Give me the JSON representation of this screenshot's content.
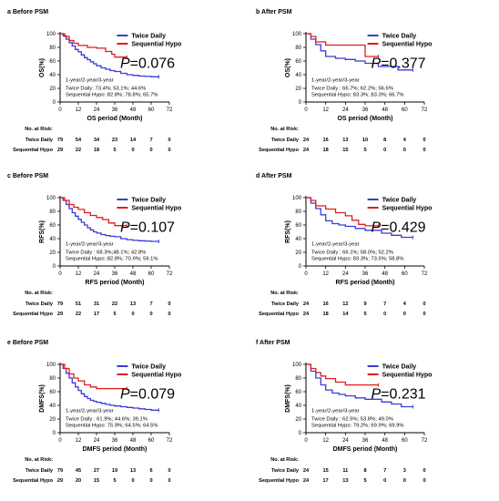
{
  "colors": {
    "twice": "#3b3bd6",
    "sequential": "#e11c1c",
    "axis": "#000000"
  },
  "risk_header": "No. at Risk:",
  "chart_data": [
    {
      "type": "line",
      "panel": "a",
      "title": "Before PSM",
      "ylabel": "OS(%)",
      "xlabel": "OS period (Month)",
      "xlim": [
        0,
        72
      ],
      "ylim": [
        0,
        100
      ],
      "xticks": [
        0,
        12,
        24,
        36,
        48,
        60,
        72
      ],
      "yticks": [
        0,
        20,
        40,
        60,
        80,
        100
      ],
      "grid": false,
      "legend_position": "top-right",
      "p_value": "=0.076",
      "summary_header": "1-year/2-year/3-year",
      "summary_lines": [
        "Twice Daily: 73.4%; 53.1%; 44.6%",
        "Sequential Hypo: 82.8%; 78.8%; 65.7%"
      ],
      "risk_times": [
        0,
        12,
        24,
        36,
        48,
        60,
        72
      ],
      "series": [
        {
          "name": "Twice Daily",
          "color": "#3b3bd6",
          "x": [
            0,
            2,
            4,
            6,
            8,
            10,
            12,
            14,
            16,
            18,
            20,
            22,
            24,
            27,
            30,
            33,
            36,
            40,
            44,
            48,
            52,
            56,
            60,
            65
          ],
          "y": [
            100,
            97,
            92,
            87,
            82,
            77,
            73.4,
            69,
            65,
            62,
            59,
            56,
            53.1,
            50,
            48,
            46,
            44.6,
            42,
            40,
            39,
            38,
            37.5,
            37,
            37
          ],
          "risk": [
            79,
            54,
            34,
            23,
            14,
            7,
            0
          ]
        },
        {
          "name": "Sequential Hypo",
          "color": "#e11c1c",
          "x": [
            0,
            3,
            6,
            9,
            12,
            18,
            24,
            30,
            34,
            36,
            40,
            44
          ],
          "y": [
            100,
            96,
            90,
            86,
            82.8,
            80,
            78.8,
            74,
            70,
            65.7,
            65.7,
            65.7
          ],
          "risk": [
            29,
            22,
            18,
            5,
            0,
            0,
            0
          ]
        }
      ]
    },
    {
      "type": "line",
      "panel": "b",
      "title": "After PSM",
      "ylabel": "OS(%)",
      "xlabel": "OS period (Month)",
      "xlim": [
        0,
        72
      ],
      "ylim": [
        0,
        100
      ],
      "xticks": [
        0,
        12,
        24,
        36,
        48,
        60,
        72
      ],
      "yticks": [
        0,
        20,
        40,
        60,
        80,
        100
      ],
      "grid": false,
      "legend_position": "top-right",
      "p_value": "=0.377",
      "summary_header": "1-year/2-year/3-year",
      "summary_lines": [
        "Twice Daily : 66.7%; 62.2%; 56.6%",
        "Sequential Hypo: 83.3%; 83.3%; 66.7%"
      ],
      "risk_times": [
        0,
        12,
        24,
        36,
        48,
        60,
        72
      ],
      "series": [
        {
          "name": "Twice Daily",
          "color": "#3b3bd6",
          "x": [
            0,
            3,
            6,
            9,
            12,
            18,
            24,
            30,
            36,
            40,
            44,
            50,
            56,
            60,
            65
          ],
          "y": [
            100,
            92,
            84,
            75,
            66.7,
            64,
            62.2,
            60,
            56.6,
            56.6,
            52,
            52,
            47,
            47,
            47
          ],
          "risk": [
            24,
            16,
            13,
            10,
            8,
            4,
            0
          ]
        },
        {
          "name": "Sequential Hypo",
          "color": "#e11c1c",
          "x": [
            0,
            3,
            6,
            12,
            24,
            30,
            36,
            40,
            44
          ],
          "y": [
            100,
            96,
            88,
            83.3,
            83.3,
            83.3,
            66.7,
            66.7,
            66.7
          ],
          "risk": [
            24,
            18,
            15,
            5,
            0,
            0,
            0
          ]
        }
      ]
    },
    {
      "type": "line",
      "panel": "c",
      "title": "Before PSM",
      "ylabel": "RFS(%)",
      "xlabel": "RFS period (Month)",
      "xlim": [
        0,
        72
      ],
      "ylim": [
        0,
        100
      ],
      "xticks": [
        0,
        12,
        24,
        36,
        48,
        60,
        72
      ],
      "yticks": [
        0,
        20,
        40,
        60,
        80,
        100
      ],
      "grid": false,
      "legend_position": "top-right",
      "p_value": "=0.107",
      "summary_header": "1-year/2-year/3-year",
      "summary_lines": [
        "Twice Daily : 68.3%;48.1%; 42.8%",
        "Sequential Hypo: 82.8%; 70.9%; 59.1%"
      ],
      "risk_times": [
        0,
        12,
        24,
        36,
        48,
        60,
        72
      ],
      "series": [
        {
          "name": "Twice Daily",
          "color": "#3b3bd6",
          "x": [
            0,
            2,
            4,
            6,
            8,
            10,
            12,
            14,
            16,
            18,
            20,
            22,
            24,
            27,
            30,
            33,
            36,
            40,
            44,
            48,
            52,
            56,
            60,
            65
          ],
          "y": [
            100,
            96,
            90,
            84,
            78,
            73,
            68.3,
            64,
            60,
            56,
            53,
            50,
            48.1,
            46,
            44.5,
            43.5,
            42.8,
            40,
            38.5,
            37.5,
            37,
            36.5,
            36,
            36
          ],
          "risk": [
            79,
            51,
            31,
            22,
            13,
            7,
            0
          ]
        },
        {
          "name": "Sequential Hypo",
          "color": "#e11c1c",
          "x": [
            0,
            3,
            6,
            9,
            12,
            16,
            20,
            24,
            28,
            32,
            36,
            40,
            44
          ],
          "y": [
            100,
            96,
            90,
            86,
            82.8,
            78,
            74,
            70.9,
            68,
            63,
            59.1,
            59.1,
            59.1
          ],
          "risk": [
            29,
            22,
            17,
            5,
            0,
            0,
            0
          ]
        }
      ]
    },
    {
      "type": "line",
      "panel": "d",
      "title": "After PSM",
      "ylabel": "RFS(%)",
      "xlabel": "RFS period (Month)",
      "xlim": [
        0,
        72
      ],
      "ylim": [
        0,
        100
      ],
      "xticks": [
        0,
        12,
        24,
        36,
        48,
        60,
        72
      ],
      "yticks": [
        0,
        20,
        40,
        60,
        80,
        100
      ],
      "grid": false,
      "legend_position": "top-right",
      "p_value": "=0.429",
      "summary_header": "1-year/2-year/3-year",
      "summary_lines": [
        "Twice Daily : 66.1%; 58.0%; 52.2%",
        "Sequential Hypo: 83.3%; 73.5%; 58.8%"
      ],
      "risk_times": [
        0,
        12,
        24,
        36,
        48,
        60,
        72
      ],
      "series": [
        {
          "name": "Twice Daily",
          "color": "#3b3bd6",
          "x": [
            0,
            3,
            6,
            9,
            12,
            16,
            20,
            24,
            30,
            36,
            40,
            46,
            52,
            58,
            65
          ],
          "y": [
            100,
            92,
            84,
            75,
            66.1,
            62,
            60,
            58.0,
            55,
            52.2,
            52.2,
            48,
            45,
            42,
            42
          ],
          "risk": [
            24,
            16,
            12,
            9,
            7,
            4,
            0
          ]
        },
        {
          "name": "Sequential Hypo",
          "color": "#e11c1c",
          "x": [
            0,
            3,
            6,
            12,
            18,
            24,
            28,
            32,
            36,
            40,
            44
          ],
          "y": [
            100,
            96,
            88,
            83.3,
            78,
            73.5,
            67,
            61,
            58.8,
            58.8,
            58.8
          ],
          "risk": [
            24,
            18,
            14,
            5,
            0,
            0,
            0
          ]
        }
      ]
    },
    {
      "type": "line",
      "panel": "e",
      "title": "Before PSM",
      "ylabel": "DMFS(%)",
      "xlabel": "DMFS period (Month)",
      "xlim": [
        0,
        72
      ],
      "ylim": [
        0,
        100
      ],
      "xticks": [
        0,
        12,
        24,
        36,
        48,
        60,
        72
      ],
      "yticks": [
        0,
        20,
        40,
        60,
        80,
        100
      ],
      "grid": false,
      "legend_position": "top-right",
      "p_value": "=0.079",
      "summary_header": "1-year/2-year/3-year",
      "summary_lines": [
        "Twice Daily : 61.9%; 44.6%; 39.1%",
        "Sequential Hypo: 75.9%; 64.5%; 64.5%"
      ],
      "risk_times": [
        0,
        12,
        24,
        36,
        48,
        60,
        72
      ],
      "series": [
        {
          "name": "Twice Daily",
          "color": "#3b3bd6",
          "x": [
            0,
            2,
            4,
            6,
            8,
            10,
            12,
            14,
            16,
            18,
            20,
            22,
            24,
            27,
            30,
            33,
            36,
            40,
            44,
            48,
            52,
            56,
            60,
            65
          ],
          "y": [
            100,
            94,
            87,
            80,
            73,
            67,
            61.9,
            57,
            53,
            50,
            47.5,
            46,
            44.6,
            43,
            41.5,
            40,
            39.1,
            38,
            37,
            36,
            35,
            34,
            33,
            33
          ],
          "risk": [
            79,
            45,
            27,
            19,
            13,
            6,
            0
          ]
        },
        {
          "name": "Sequential Hypo",
          "color": "#e11c1c",
          "x": [
            0,
            3,
            6,
            9,
            12,
            16,
            20,
            24,
            30,
            36,
            40,
            44
          ],
          "y": [
            100,
            94,
            86,
            80,
            75.9,
            70,
            67,
            64.5,
            64.5,
            64.5,
            64.5,
            64.5
          ],
          "risk": [
            29,
            20,
            15,
            5,
            0,
            0,
            0
          ]
        }
      ]
    },
    {
      "type": "line",
      "panel": "f",
      "title": "After PSM",
      "ylabel": "DMFS(%)",
      "xlabel": "DMFS period (Month)",
      "xlim": [
        0,
        72
      ],
      "ylim": [
        0,
        100
      ],
      "xticks": [
        0,
        12,
        24,
        36,
        48,
        60,
        72
      ],
      "yticks": [
        0,
        20,
        40,
        60,
        80,
        100
      ],
      "grid": false,
      "legend_position": "top-right",
      "p_value": "=0.231",
      "summary_header": "1-year/2-year/3-year",
      "summary_lines": [
        "Twice Daily : 62.5%; 53.8%; 49.0%",
        "Sequential Hypo: 79.2%; 69.9%; 69.9%"
      ],
      "risk_times": [
        0,
        12,
        24,
        36,
        48,
        60,
        72
      ],
      "series": [
        {
          "name": "Twice Daily",
          "color": "#3b3bd6",
          "x": [
            0,
            3,
            6,
            9,
            12,
            16,
            20,
            24,
            30,
            36,
            40,
            46,
            52,
            58,
            65
          ],
          "y": [
            100,
            90,
            80,
            70,
            62.5,
            58,
            56,
            53.8,
            51,
            49.0,
            49.0,
            45,
            42,
            38,
            38
          ],
          "risk": [
            24,
            15,
            11,
            8,
            7,
            3,
            0
          ]
        },
        {
          "name": "Sequential Hypo",
          "color": "#e11c1c",
          "x": [
            0,
            3,
            6,
            9,
            12,
            18,
            24,
            30,
            36,
            40,
            44
          ],
          "y": [
            100,
            94,
            88,
            83,
            79.2,
            74,
            69.9,
            69.9,
            69.9,
            69.9,
            69.9
          ],
          "risk": [
            24,
            17,
            13,
            5,
            0,
            0,
            0
          ]
        }
      ]
    }
  ]
}
